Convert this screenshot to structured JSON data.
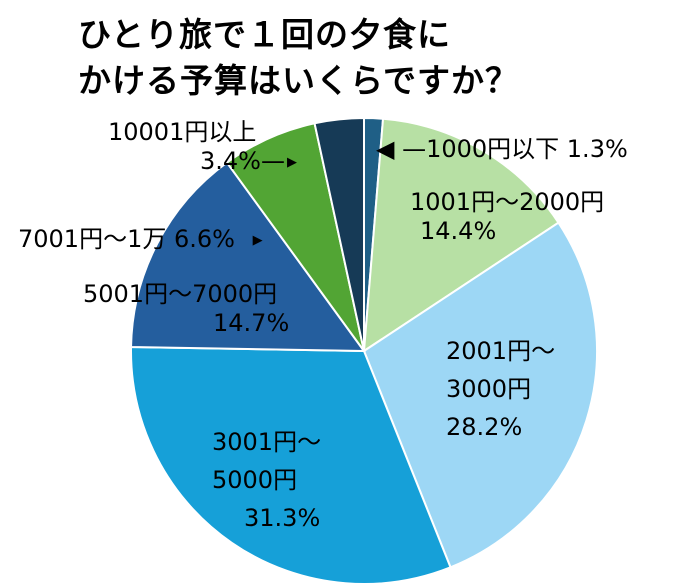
{
  "title": {
    "line1": "ひとり旅で１回の夕食に",
    "line2": "かける予算はいくらですか？"
  },
  "chart_data": {
    "type": "pie",
    "title": "ひとり旅で１回の夕食にかける予算はいくらですか？",
    "start_angle_deg": 0,
    "direction": "clockwise",
    "categories": [
      "1000円以下",
      "1001円～2000円",
      "2001円～3000円",
      "3001円～5000円",
      "5001円～7000円",
      "7001円～1万",
      "10001円以上"
    ],
    "values": [
      1.3,
      14.4,
      28.2,
      31.3,
      14.7,
      6.6,
      3.4
    ],
    "unit": "%",
    "colors": [
      "#1f5f86",
      "#b7e0a4",
      "#9dd7f5",
      "#16a0d8",
      "#245e9e",
      "#52a534",
      "#163a56"
    ],
    "legend": "none (data labels on slices)"
  },
  "labels": {
    "s0": {
      "text": "◀ —1000円以下 1.3%"
    },
    "s1": {
      "line1": "1001円～2000円",
      "line2": "14.4%"
    },
    "s2": {
      "line1": "2001円～",
      "line2": "3000円",
      "line3": "28.2%"
    },
    "s3": {
      "line1": "3001円～",
      "line2": "5000円",
      "line3": "31.3%"
    },
    "s4": {
      "line1": "5001円～7000円",
      "line2": "14.7%"
    },
    "s5": {
      "text": "7001円～1万 6.6%",
      "arrow": "▶"
    },
    "s6": {
      "line1": "10001円以上",
      "line2": "3.4%—",
      "arrow": "▶"
    }
  }
}
